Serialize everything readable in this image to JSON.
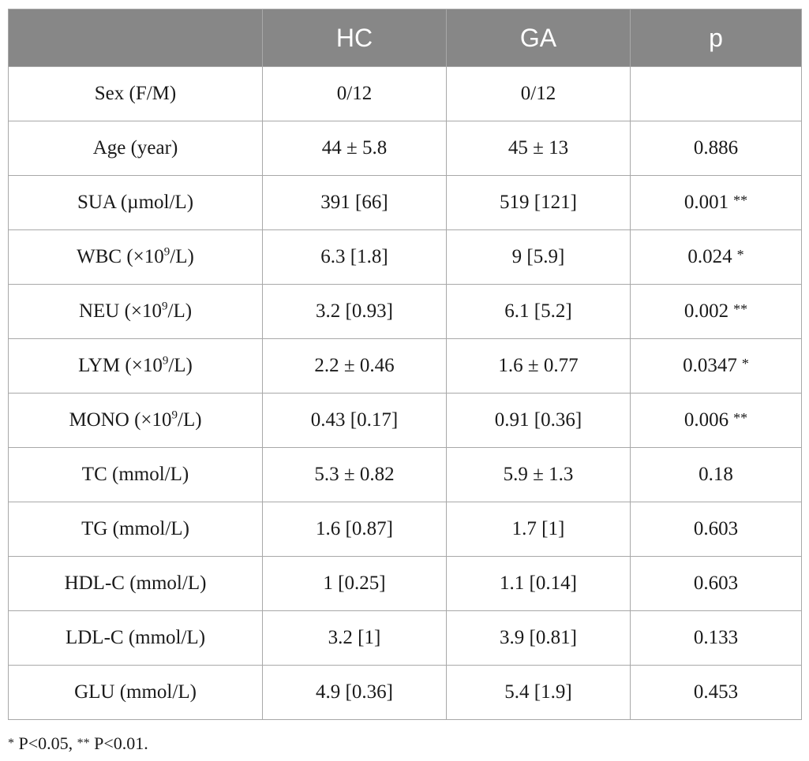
{
  "header": {
    "col_blank": "",
    "col_hc": "HC",
    "col_ga": "GA",
    "col_p": "p"
  },
  "rows": [
    {
      "label_pre": "Sex (F/M)",
      "label_sup": "",
      "label_post": "",
      "hc": "0/12",
      "ga": "0/12",
      "p": "",
      "sig": ""
    },
    {
      "label_pre": "Age (year)",
      "label_sup": "",
      "label_post": "",
      "hc": "44 ± 5.8",
      "ga": "45 ± 13",
      "p": "0.886",
      "sig": ""
    },
    {
      "label_pre": "SUA (µmol/L)",
      "label_sup": "",
      "label_post": "",
      "hc": "391 [66]",
      "ga": "519 [121]",
      "p": "0.001",
      "sig": "**"
    },
    {
      "label_pre": "WBC (×10",
      "label_sup": "9",
      "label_post": "/L)",
      "hc": "6.3 [1.8]",
      "ga": "9 [5.9]",
      "p": "0.024",
      "sig": "*"
    },
    {
      "label_pre": "NEU (×10",
      "label_sup": "9",
      "label_post": "/L)",
      "hc": "3.2 [0.93]",
      "ga": "6.1 [5.2]",
      "p": "0.002",
      "sig": "**"
    },
    {
      "label_pre": "LYM (×10",
      "label_sup": "9",
      "label_post": "/L)",
      "hc": "2.2 ± 0.46",
      "ga": "1.6 ± 0.77",
      "p": "0.0347",
      "sig": "*"
    },
    {
      "label_pre": "MONO (×10",
      "label_sup": "9",
      "label_post": "/L)",
      "hc": "0.43 [0.17]",
      "ga": "0.91 [0.36]",
      "p": "0.006",
      "sig": "**"
    },
    {
      "label_pre": "TC (mmol/L)",
      "label_sup": "",
      "label_post": "",
      "hc": "5.3 ± 0.82",
      "ga": "5.9 ± 1.3",
      "p": "0.18",
      "sig": ""
    },
    {
      "label_pre": "TG (mmol/L)",
      "label_sup": "",
      "label_post": "",
      "hc": "1.6 [0.87]",
      "ga": "1.7 [1]",
      "p": "0.603",
      "sig": ""
    },
    {
      "label_pre": "HDL-C (mmol/L)",
      "label_sup": "",
      "label_post": "",
      "hc": "1 [0.25]",
      "ga": "1.1 [0.14]",
      "p": "0.603",
      "sig": ""
    },
    {
      "label_pre": "LDL-C (mmol/L)",
      "label_sup": "",
      "label_post": "",
      "hc": "3.2 [1]",
      "ga": "3.9 [0.81]",
      "p": "0.133",
      "sig": ""
    },
    {
      "label_pre": "GLU (mmol/L)",
      "label_sup": "",
      "label_post": "",
      "hc": "4.9 [0.36]",
      "ga": "5.4 [1.9]",
      "p": "0.453",
      "sig": ""
    }
  ],
  "footnote": {
    "star1": "*",
    "text1": " P<0.05, ",
    "star2": "**",
    "text2": " P<0.01."
  },
  "colors": {
    "header_bg": "#878787",
    "header_text": "#ffffff",
    "grid": "#a8a8a8"
  }
}
